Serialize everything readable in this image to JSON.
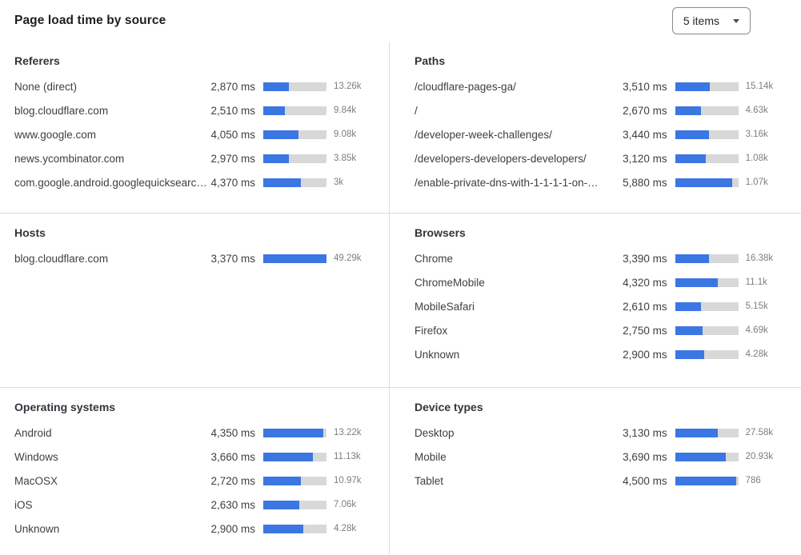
{
  "header": {
    "title": "Page load time by source",
    "items_select": {
      "value": "5 items"
    }
  },
  "colors": {
    "bar_fill": "#3b76e3",
    "bar_track": "#d8d8d8",
    "divider": "#dcdcdc",
    "count_text": "#7b7e83"
  },
  "chart_data": {
    "type": "bar",
    "orientation": "horizontal",
    "title": "Page load time by source",
    "unit": "ms",
    "note": "Each row: dimension value, median page load time in ms, blue bar = load time (bar_pct = % of gray track filled), right label = request count",
    "sections": [
      {
        "title": "Referers",
        "grid_pos": "row1-left",
        "rows": [
          {
            "label": "None (direct)",
            "ms": 2870,
            "ms_label": "2,870 ms",
            "count_label": "13.26k",
            "bar_pct": 40
          },
          {
            "label": "blog.cloudflare.com",
            "ms": 2510,
            "ms_label": "2,510 ms",
            "count_label": "9.84k",
            "bar_pct": 34.5
          },
          {
            "label": "www.google.com",
            "ms": 4050,
            "ms_label": "4,050 ms",
            "count_label": "9.08k",
            "bar_pct": 55.5
          },
          {
            "label": "news.ycombinator.com",
            "ms": 2970,
            "ms_label": "2,970 ms",
            "count_label": "3.85k",
            "bar_pct": 41
          },
          {
            "label": "com.google.android.googlequicksearc…",
            "ms": 4370,
            "ms_label": "4,370 ms",
            "count_label": "3k",
            "bar_pct": 60
          }
        ]
      },
      {
        "title": "Paths",
        "grid_pos": "row1-right",
        "rows": [
          {
            "label": "/cloudflare-pages-ga/",
            "ms": 3510,
            "ms_label": "3,510 ms",
            "count_label": "15.14k",
            "bar_pct": 54.5
          },
          {
            "label": "/",
            "ms": 2670,
            "ms_label": "2,670 ms",
            "count_label": "4.63k",
            "bar_pct": 41.5
          },
          {
            "label": "/developer-week-challenges/",
            "ms": 3440,
            "ms_label": "3,440 ms",
            "count_label": "3.16k",
            "bar_pct": 53.5
          },
          {
            "label": "/developers-developers-developers/",
            "ms": 3120,
            "ms_label": "3,120 ms",
            "count_label": "1.08k",
            "bar_pct": 48.5
          },
          {
            "label": "/enable-private-dns-with-1-1-1-1-on-…",
            "ms": 5880,
            "ms_label": "5,880 ms",
            "count_label": "1.07k",
            "bar_pct": 91
          }
        ]
      },
      {
        "title": "Hosts",
        "grid_pos": "row2-left",
        "rows": [
          {
            "label": "blog.cloudflare.com",
            "ms": 3370,
            "ms_label": "3,370 ms",
            "count_label": "49.29k",
            "bar_pct": 100
          }
        ]
      },
      {
        "title": "Browsers",
        "grid_pos": "row2-right",
        "rows": [
          {
            "label": "Chrome",
            "ms": 3390,
            "ms_label": "3,390 ms",
            "count_label": "16.38k",
            "bar_pct": 53.5
          },
          {
            "label": "ChromeMobile",
            "ms": 4320,
            "ms_label": "4,320 ms",
            "count_label": "11.1k",
            "bar_pct": 68
          },
          {
            "label": "MobileSafari",
            "ms": 2610,
            "ms_label": "2,610 ms",
            "count_label": "5.15k",
            "bar_pct": 41
          },
          {
            "label": "Firefox",
            "ms": 2750,
            "ms_label": "2,750 ms",
            "count_label": "4.69k",
            "bar_pct": 43.5
          },
          {
            "label": "Unknown",
            "ms": 2900,
            "ms_label": "2,900 ms",
            "count_label": "4.28k",
            "bar_pct": 45.5
          }
        ]
      },
      {
        "title": "Operating systems",
        "grid_pos": "row3-left",
        "rows": [
          {
            "label": "Android",
            "ms": 4350,
            "ms_label": "4,350 ms",
            "count_label": "13.22k",
            "bar_pct": 94.5
          },
          {
            "label": "Windows",
            "ms": 3660,
            "ms_label": "3,660 ms",
            "count_label": "11.13k",
            "bar_pct": 78.5
          },
          {
            "label": "MacOSX",
            "ms": 2720,
            "ms_label": "2,720 ms",
            "count_label": "10.97k",
            "bar_pct": 59
          },
          {
            "label": "iOS",
            "ms": 2630,
            "ms_label": "2,630 ms",
            "count_label": "7.06k",
            "bar_pct": 56.5
          },
          {
            "label": "Unknown",
            "ms": 2900,
            "ms_label": "2,900 ms",
            "count_label": "4.28k",
            "bar_pct": 63
          }
        ]
      },
      {
        "title": "Device types",
        "grid_pos": "row3-right",
        "rows": [
          {
            "label": "Desktop",
            "ms": 3130,
            "ms_label": "3,130 ms",
            "count_label": "27.58k",
            "bar_pct": 68
          },
          {
            "label": "Mobile",
            "ms": 3690,
            "ms_label": "3,690 ms",
            "count_label": "20.93k",
            "bar_pct": 80
          },
          {
            "label": "Tablet",
            "ms": 4500,
            "ms_label": "4,500 ms",
            "count_label": "786",
            "bar_pct": 97
          }
        ]
      }
    ]
  }
}
